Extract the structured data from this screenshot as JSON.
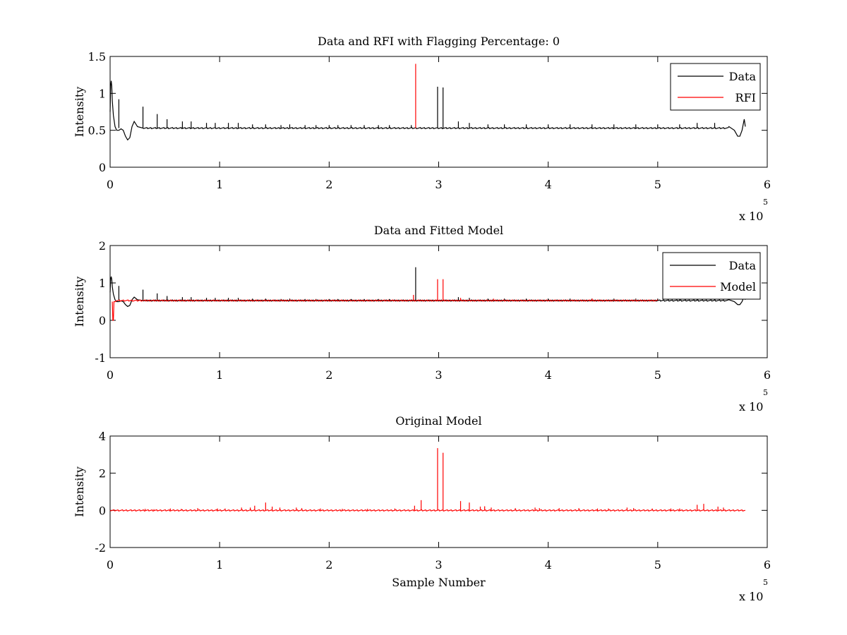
{
  "chart_data": [
    {
      "type": "line",
      "title": "Data and RFI with Flagging Percentage: 0",
      "xlabel": "",
      "ylabel": "Intensity",
      "xlim": [
        0,
        6
      ],
      "ylim": [
        0,
        1.5
      ],
      "x_ticks": [
        0,
        1,
        2,
        3,
        4,
        5,
        6
      ],
      "y_ticks": [
        0,
        0.5,
        1,
        1.5
      ],
      "x_tick_labels": [
        "0",
        "1",
        "2",
        "3",
        "4",
        "5",
        "6"
      ],
      "y_tick_labels": [
        "0",
        "0.5",
        "1",
        "1.5"
      ],
      "x_exponent": "x 10",
      "x_exponent_power": "5",
      "legend_position": "top-right",
      "series": [
        {
          "name": "Data",
          "color": "#000000",
          "baseline": 0.53,
          "x": [
            0,
            0.005,
            0.01,
            0.015,
            0.02,
            0.03,
            0.045,
            0.06,
            0.08,
            0.1,
            0.12,
            0.14,
            0.16,
            0.18,
            0.2,
            0.22,
            0.25,
            0.3,
            5.65,
            5.7,
            5.73,
            5.75,
            5.77,
            5.79,
            5.8
          ],
          "y": [
            0.75,
            1.1,
            1.17,
            1.1,
            0.9,
            0.7,
            0.55,
            0.5,
            0.5,
            0.52,
            0.5,
            0.42,
            0.37,
            0.4,
            0.55,
            0.62,
            0.55,
            0.53,
            0.55,
            0.5,
            0.42,
            0.42,
            0.5,
            0.65,
            0.55
          ],
          "spikes": [
            {
              "x": 0.08,
              "y": 0.92
            },
            {
              "x": 0.3,
              "y": 0.82
            },
            {
              "x": 0.43,
              "y": 0.72
            },
            {
              "x": 0.52,
              "y": 0.65
            },
            {
              "x": 0.66,
              "y": 0.62
            },
            {
              "x": 0.74,
              "y": 0.62
            },
            {
              "x": 0.88,
              "y": 0.6
            },
            {
              "x": 0.96,
              "y": 0.6
            },
            {
              "x": 1.08,
              "y": 0.6
            },
            {
              "x": 1.17,
              "y": 0.6
            },
            {
              "x": 1.3,
              "y": 0.58
            },
            {
              "x": 1.42,
              "y": 0.58
            },
            {
              "x": 1.56,
              "y": 0.57
            },
            {
              "x": 1.64,
              "y": 0.58
            },
            {
              "x": 1.78,
              "y": 0.57
            },
            {
              "x": 1.88,
              "y": 0.57
            },
            {
              "x": 2.0,
              "y": 0.57
            },
            {
              "x": 2.08,
              "y": 0.57
            },
            {
              "x": 2.2,
              "y": 0.57
            },
            {
              "x": 2.32,
              "y": 0.57
            },
            {
              "x": 2.45,
              "y": 0.57
            },
            {
              "x": 2.55,
              "y": 0.57
            },
            {
              "x": 2.75,
              "y": 0.57
            },
            {
              "x": 2.99,
              "y": 1.09
            },
            {
              "x": 3.04,
              "y": 1.08
            },
            {
              "x": 3.18,
              "y": 0.62
            },
            {
              "x": 3.28,
              "y": 0.6
            },
            {
              "x": 3.45,
              "y": 0.58
            },
            {
              "x": 3.6,
              "y": 0.58
            },
            {
              "x": 3.8,
              "y": 0.58
            },
            {
              "x": 4.0,
              "y": 0.58
            },
            {
              "x": 4.2,
              "y": 0.58
            },
            {
              "x": 4.4,
              "y": 0.58
            },
            {
              "x": 4.6,
              "y": 0.58
            },
            {
              "x": 4.8,
              "y": 0.58
            },
            {
              "x": 5.0,
              "y": 0.58
            },
            {
              "x": 5.2,
              "y": 0.58
            },
            {
              "x": 5.36,
              "y": 0.6
            },
            {
              "x": 5.52,
              "y": 0.6
            }
          ]
        },
        {
          "name": "RFI",
          "color": "#ff0000",
          "spikes": [
            {
              "x": 2.79,
              "y": 1.4
            }
          ]
        }
      ]
    },
    {
      "type": "line",
      "title": "Data and Fitted Model",
      "xlabel": "",
      "ylabel": "Intensity",
      "xlim": [
        0,
        6
      ],
      "ylim": [
        -1,
        2
      ],
      "x_ticks": [
        0,
        1,
        2,
        3,
        4,
        5,
        6
      ],
      "y_ticks": [
        -1,
        0,
        1,
        2
      ],
      "x_tick_labels": [
        "0",
        "1",
        "2",
        "3",
        "4",
        "5",
        "6"
      ],
      "y_tick_labels": [
        "-1",
        "0",
        "1",
        "2"
      ],
      "x_exponent": "x 10",
      "x_exponent_power": "5",
      "legend_position": "top-right",
      "series": [
        {
          "name": "Data",
          "color": "#000000",
          "baseline": 0.53,
          "x": [
            0,
            0.005,
            0.01,
            0.015,
            0.02,
            0.03,
            0.045,
            0.06,
            0.08,
            0.1,
            0.12,
            0.14,
            0.16,
            0.18,
            0.2,
            0.22,
            0.25,
            0.3,
            5.65,
            5.7,
            5.73,
            5.75,
            5.77,
            5.79,
            5.8
          ],
          "y": [
            0.75,
            1.1,
            1.17,
            1.1,
            0.9,
            0.7,
            0.55,
            0.5,
            0.5,
            0.52,
            0.5,
            0.42,
            0.37,
            0.4,
            0.55,
            0.62,
            0.55,
            0.53,
            0.55,
            0.5,
            0.42,
            0.42,
            0.5,
            0.65,
            0.55
          ],
          "spikes": [
            {
              "x": 0.08,
              "y": 0.92
            },
            {
              "x": 0.3,
              "y": 0.82
            },
            {
              "x": 0.43,
              "y": 0.72
            },
            {
              "x": 0.52,
              "y": 0.65
            },
            {
              "x": 0.66,
              "y": 0.62
            },
            {
              "x": 0.74,
              "y": 0.62
            },
            {
              "x": 0.88,
              "y": 0.6
            },
            {
              "x": 0.96,
              "y": 0.6
            },
            {
              "x": 1.08,
              "y": 0.6
            },
            {
              "x": 1.17,
              "y": 0.6
            },
            {
              "x": 1.3,
              "y": 0.58
            },
            {
              "x": 1.42,
              "y": 0.58
            },
            {
              "x": 1.56,
              "y": 0.57
            },
            {
              "x": 1.64,
              "y": 0.58
            },
            {
              "x": 1.78,
              "y": 0.57
            },
            {
              "x": 1.88,
              "y": 0.57
            },
            {
              "x": 2.0,
              "y": 0.57
            },
            {
              "x": 2.08,
              "y": 0.57
            },
            {
              "x": 2.2,
              "y": 0.57
            },
            {
              "x": 2.32,
              "y": 0.57
            },
            {
              "x": 2.45,
              "y": 0.57
            },
            {
              "x": 2.55,
              "y": 0.57
            },
            {
              "x": 2.79,
              "y": 1.42
            },
            {
              "x": 3.18,
              "y": 0.62
            },
            {
              "x": 3.28,
              "y": 0.6
            },
            {
              "x": 3.45,
              "y": 0.58
            },
            {
              "x": 3.6,
              "y": 0.58
            },
            {
              "x": 3.8,
              "y": 0.58
            },
            {
              "x": 4.0,
              "y": 0.58
            },
            {
              "x": 4.2,
              "y": 0.58
            },
            {
              "x": 4.4,
              "y": 0.58
            },
            {
              "x": 4.6,
              "y": 0.58
            },
            {
              "x": 4.8,
              "y": 0.58
            },
            {
              "x": 5.0,
              "y": 0.58
            },
            {
              "x": 5.2,
              "y": 0.58
            },
            {
              "x": 5.36,
              "y": 0.6
            },
            {
              "x": 5.52,
              "y": 0.6
            }
          ]
        },
        {
          "name": "Model",
          "color": "#ff0000",
          "baseline": 0.53,
          "x": [
            0.02,
            0.025,
            0.03,
            0.035,
            0.05,
            5.0
          ],
          "y": [
            0.5,
            0.0,
            0.0,
            0.5,
            0.5,
            0.55
          ],
          "spikes": [
            {
              "x": 2.77,
              "y": 0.68
            },
            {
              "x": 2.99,
              "y": 1.1
            },
            {
              "x": 3.04,
              "y": 1.1
            },
            {
              "x": 3.2,
              "y": 0.6
            },
            {
              "x": 3.5,
              "y": 0.58
            },
            {
              "x": 4.4,
              "y": 0.58
            }
          ]
        }
      ]
    },
    {
      "type": "line",
      "title": "Original Model",
      "xlabel": "Sample Number",
      "ylabel": "Intensity",
      "xlim": [
        0,
        6
      ],
      "ylim": [
        -2,
        4
      ],
      "x_ticks": [
        0,
        1,
        2,
        3,
        4,
        5,
        6
      ],
      "y_ticks": [
        -2,
        0,
        2,
        4
      ],
      "x_tick_labels": [
        "0",
        "1",
        "2",
        "3",
        "4",
        "5",
        "6"
      ],
      "y_tick_labels": [
        "-2",
        "0",
        "2",
        "4"
      ],
      "x_exponent": "x 10",
      "x_exponent_power": "5",
      "series": [
        {
          "color": "#ff0000",
          "baseline": 0.0,
          "x": [
            0.0,
            5.8
          ],
          "y": [
            0.0,
            0.0
          ],
          "spikes": [
            {
              "x": 0.32,
              "y": 0.08
            },
            {
              "x": 0.4,
              "y": 0.06
            },
            {
              "x": 0.55,
              "y": 0.1
            },
            {
              "x": 0.65,
              "y": 0.08
            },
            {
              "x": 0.8,
              "y": 0.12
            },
            {
              "x": 0.98,
              "y": 0.1
            },
            {
              "x": 1.05,
              "y": 0.1
            },
            {
              "x": 1.2,
              "y": 0.15
            },
            {
              "x": 1.28,
              "y": 0.15
            },
            {
              "x": 1.32,
              "y": 0.25
            },
            {
              "x": 1.42,
              "y": 0.42
            },
            {
              "x": 1.48,
              "y": 0.2
            },
            {
              "x": 1.55,
              "y": 0.15
            },
            {
              "x": 1.7,
              "y": 0.15
            },
            {
              "x": 1.75,
              "y": 0.12
            },
            {
              "x": 1.92,
              "y": 0.1
            },
            {
              "x": 2.12,
              "y": 0.08
            },
            {
              "x": 2.35,
              "y": 0.08
            },
            {
              "x": 2.6,
              "y": 0.1
            },
            {
              "x": 2.78,
              "y": 0.25
            },
            {
              "x": 2.84,
              "y": 0.55
            },
            {
              "x": 2.99,
              "y": 3.35
            },
            {
              "x": 3.04,
              "y": 3.1
            },
            {
              "x": 3.2,
              "y": 0.5
            },
            {
              "x": 3.28,
              "y": 0.42
            },
            {
              "x": 3.38,
              "y": 0.2
            },
            {
              "x": 3.42,
              "y": 0.22
            },
            {
              "x": 3.48,
              "y": 0.15
            },
            {
              "x": 3.7,
              "y": 0.12
            },
            {
              "x": 3.88,
              "y": 0.15
            },
            {
              "x": 3.92,
              "y": 0.12
            },
            {
              "x": 4.1,
              "y": 0.12
            },
            {
              "x": 4.28,
              "y": 0.12
            },
            {
              "x": 4.45,
              "y": 0.1
            },
            {
              "x": 4.55,
              "y": 0.1
            },
            {
              "x": 4.72,
              "y": 0.15
            },
            {
              "x": 4.78,
              "y": 0.12
            },
            {
              "x": 4.95,
              "y": 0.1
            },
            {
              "x": 5.12,
              "y": 0.1
            },
            {
              "x": 5.2,
              "y": 0.1
            },
            {
              "x": 5.36,
              "y": 0.3
            },
            {
              "x": 5.42,
              "y": 0.35
            },
            {
              "x": 5.55,
              "y": 0.2
            },
            {
              "x": 5.6,
              "y": 0.15
            }
          ]
        }
      ]
    }
  ]
}
